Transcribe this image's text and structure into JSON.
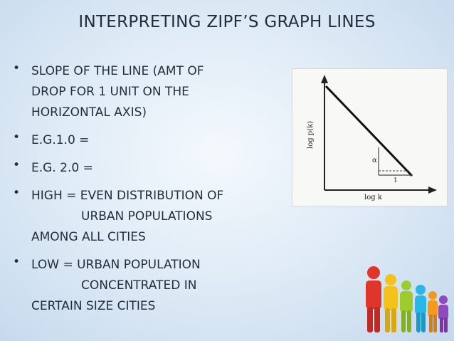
{
  "slide": {
    "title": "INTERPRETING ZIPF’S GRAPH LINES",
    "bullets": [
      {
        "lines": [
          "SLOPE OF THE LINE (AMT OF",
          "DROP FOR 1 UNIT ON THE",
          "HORIZONTAL AXIS)"
        ]
      },
      {
        "lines": [
          "E.G.1.0 ="
        ]
      },
      {
        "lines": [
          "E.G. 2.0 ="
        ]
      },
      {
        "lines": [
          "HIGH = EVEN DISTRIBUTION OF",
          "URBAN POPULATIONS",
          "AMONG ALL CITIES"
        ]
      },
      {
        "lines": [
          "LOW  = URBAN POPULATION",
          "CONCENTRATED IN",
          "CERTAIN SIZE CITIES"
        ]
      }
    ],
    "bullet_glyph": "•"
  },
  "figure": {
    "y_axis_label": "log p(k)",
    "x_axis_label": "log k",
    "angle_label": "α",
    "run_label": "1"
  },
  "decoration": {
    "icon": "people-figures-icon",
    "colors": [
      "#e0352b",
      "#f4c21a",
      "#9ccc2e",
      "#2ab6e6",
      "#f39a1c",
      "#8f4bbd"
    ]
  }
}
